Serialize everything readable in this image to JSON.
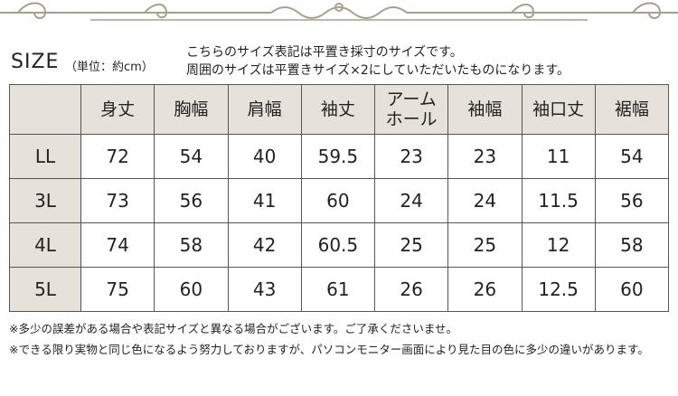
{
  "heading": {
    "title": "SIZE",
    "unit": "（単位：約cm）",
    "notes": [
      "こちらのサイズ表記は平置き採寸のサイズです。",
      "周囲のサイズは平置きサイズ×2にしていただいたものになります。"
    ]
  },
  "table": {
    "columns": [
      "身丈",
      "胸幅",
      "肩幅",
      "袖丈",
      "アーム\nホール",
      "袖幅",
      "袖口丈",
      "裾幅"
    ],
    "rows": [
      {
        "size": "LL",
        "cells": [
          72,
          54,
          40,
          59.5,
          23,
          23,
          11,
          54
        ]
      },
      {
        "size": "3L",
        "cells": [
          73,
          56,
          41,
          60,
          24,
          24,
          11.5,
          56
        ]
      },
      {
        "size": "4L",
        "cells": [
          74,
          58,
          42,
          60.5,
          25,
          25,
          12,
          58
        ]
      },
      {
        "size": "5L",
        "cells": [
          75,
          60,
          43,
          61,
          26,
          26,
          12.5,
          60
        ]
      }
    ]
  },
  "footnotes": [
    "※多少の誤差がある場合や表記サイズと異なる場合がございます。ご了承くださいませ。",
    "※できる限り実物と同じ色になるよう努力しておりますが、パソコンモニター画面により見た目の色に多少の違いがあります。"
  ]
}
